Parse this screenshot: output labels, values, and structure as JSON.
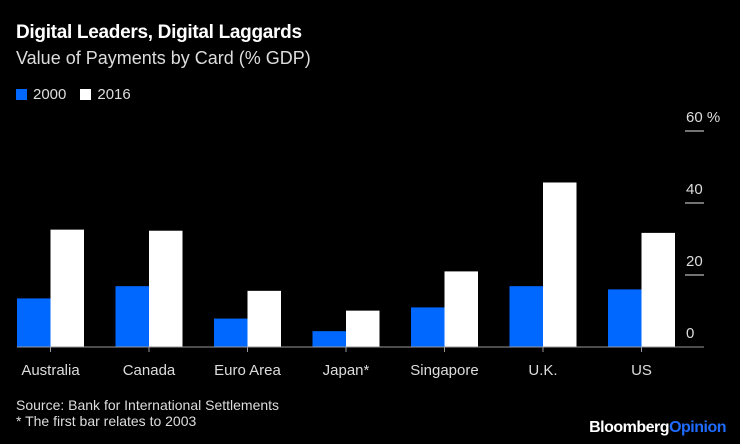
{
  "chart_data": {
    "type": "bar",
    "title": "Digital Leaders, Digital Laggards",
    "subtitle": "Value of Payments by Card (% GDP)",
    "categories": [
      "Australia",
      "Canada",
      "Euro Area",
      "Japan*",
      "Singapore",
      "U.K.",
      "US"
    ],
    "series": [
      {
        "name": "2000",
        "color": "#0068ff",
        "values": [
          13.5,
          16.9,
          7.9,
          4.4,
          11.0,
          16.9,
          16.0
        ]
      },
      {
        "name": "2016",
        "color": "#ffffff",
        "values": [
          32.6,
          32.3,
          15.6,
          10.1,
          21.0,
          45.7,
          31.7
        ]
      }
    ],
    "ylim": [
      0,
      60
    ],
    "yticks": [
      0,
      20,
      40,
      60
    ],
    "ytick_labels": [
      "0",
      "20",
      "40",
      "60 %"
    ],
    "yaxis_position": "right",
    "grid": false,
    "legend_position": "top-left"
  },
  "source": "Source: Bank for International Settlements",
  "footnote": "* The first bar relates to 2003",
  "logo": {
    "part1": "Bloomberg",
    "part2": "Opinion"
  }
}
